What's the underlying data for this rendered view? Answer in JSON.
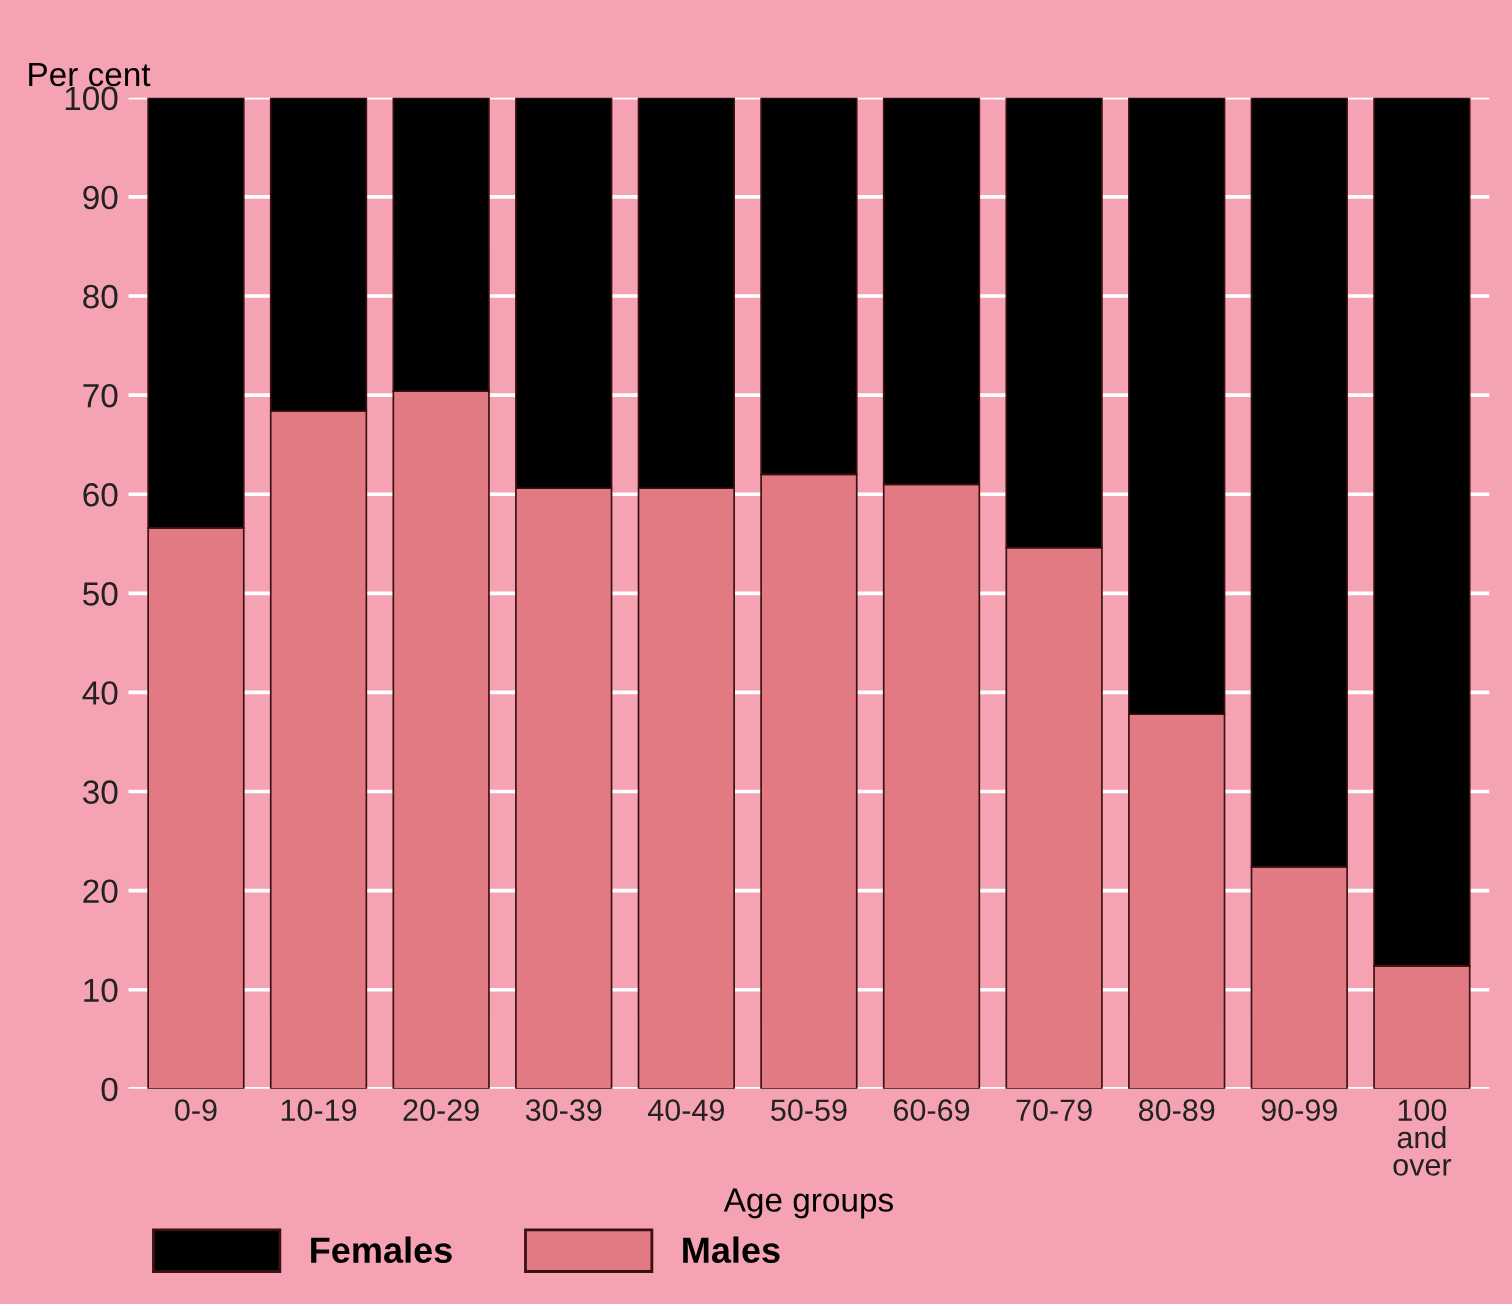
{
  "chart_data": {
    "type": "bar",
    "stacked": true,
    "ylabel": "Per cent",
    "xlabel": "Age groups",
    "categories": [
      "0-9",
      "10-19",
      "20-29",
      "30-39",
      "40-49",
      "50-59",
      "60-69",
      "70-79",
      "80-89",
      "90-99",
      "100\nand\nover"
    ],
    "series": [
      {
        "name": "Males",
        "color": "#e27a84",
        "values": [
          56.6,
          68.4,
          70.4,
          60.6,
          60.6,
          62,
          61,
          54.6,
          37.8,
          22.4,
          12.4
        ]
      },
      {
        "name": "Females",
        "color": "#000000",
        "values": [
          43.4,
          31.6,
          29.6,
          39.4,
          39.4,
          38,
          39,
          45.4,
          62.2,
          77.6,
          87.6
        ]
      }
    ],
    "ylim": [
      0,
      100
    ],
    "yticks": [
      0,
      10,
      20,
      30,
      40,
      50,
      60,
      70,
      80,
      90,
      100
    ],
    "grid": "y",
    "legend": "bottom left"
  }
}
